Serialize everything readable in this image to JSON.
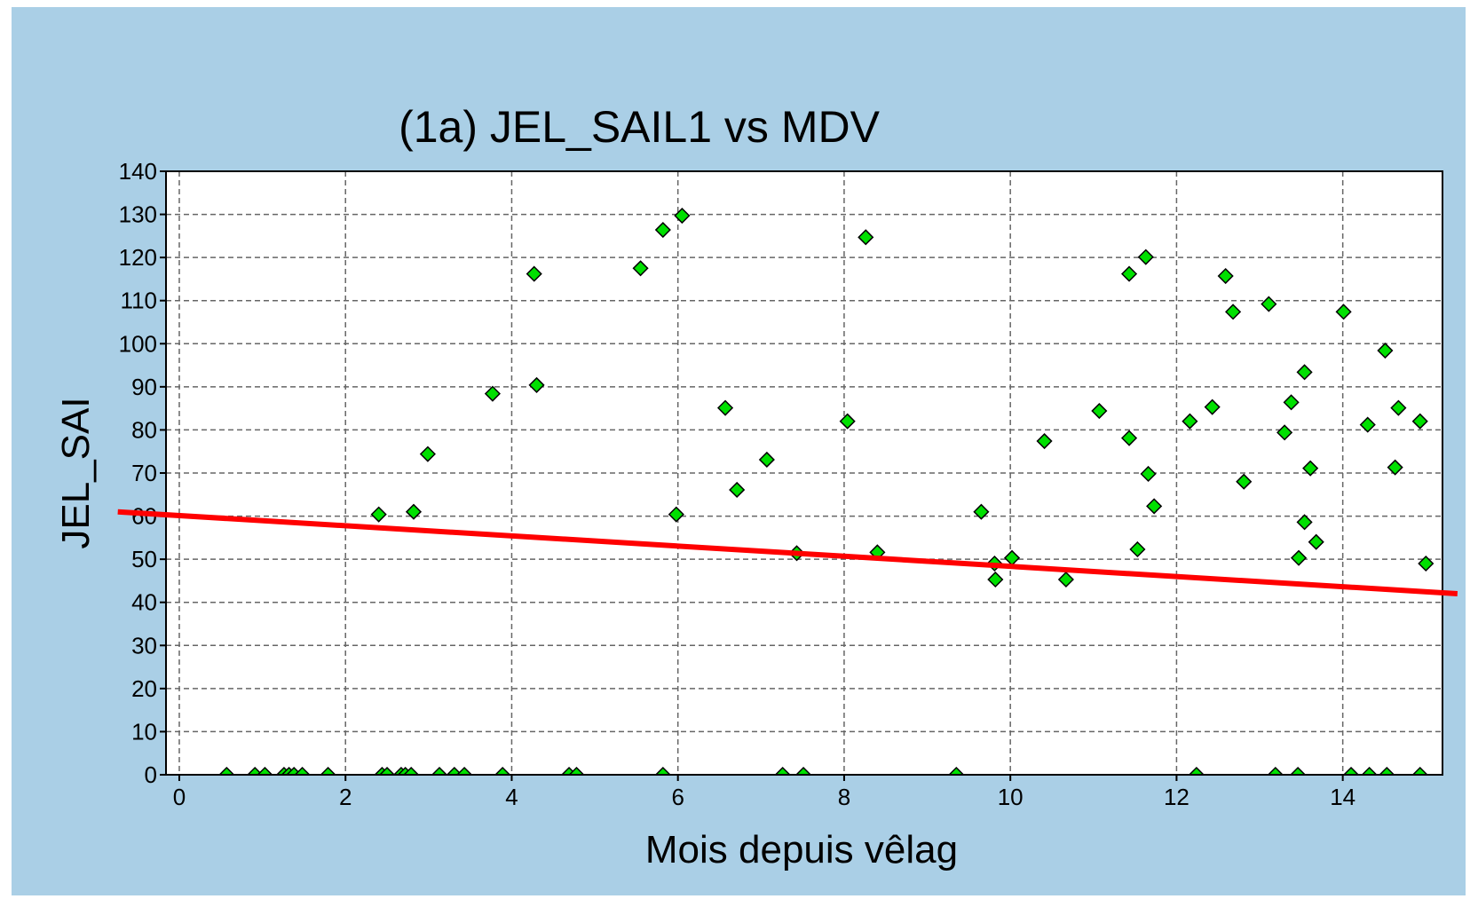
{
  "chart_data": {
    "type": "scatter",
    "title": "(1a) JEL_SAIL1 vs MDV",
    "xlabel": "Mois depuis vêlag",
    "ylabel": "JEL_SAI",
    "x": [
      2.4,
      2.82,
      2.99,
      3.77,
      4.27,
      4.3,
      5.55,
      5.82,
      6.05,
      5.98,
      6.57,
      6.71,
      7.07,
      7.43,
      8.04,
      8.26,
      8.4,
      9.65,
      9.81,
      9.82,
      10.02,
      10.41,
      10.67,
      11.07,
      11.43,
      11.43,
      11.53,
      11.63,
      11.66,
      11.73,
      12.16,
      12.43,
      12.59,
      12.68,
      12.81,
      13.11,
      13.3,
      13.38,
      13.47,
      13.54,
      13.54,
      13.61,
      13.68,
      14.01,
      14.3,
      14.51,
      14.63,
      14.67,
      14.93,
      15.0,
      0.57,
      0.91,
      1.03,
      1.26,
      1.32,
      1.38,
      1.48,
      1.79,
      2.44,
      2.5,
      2.67,
      2.72,
      2.79,
      3.13,
      3.31,
      3.43,
      3.89,
      4.69,
      4.78,
      5.82,
      7.26,
      7.51,
      9.35,
      12.24,
      13.19,
      13.46,
      14.1,
      14.32,
      14.53,
      14.93
    ],
    "values": [
      60.4,
      61,
      74.4,
      88.4,
      116.2,
      90.4,
      117.5,
      126.4,
      129.7,
      60.4,
      85.1,
      66.1,
      73.1,
      51.4,
      82,
      124.7,
      51.6,
      61,
      49,
      45.3,
      50.3,
      77.4,
      45.3,
      84.4,
      116.2,
      78.1,
      52.3,
      120.1,
      69.8,
      62.3,
      82,
      85.3,
      115.7,
      107.4,
      68,
      109.2,
      79.4,
      86.4,
      50.3,
      93.4,
      58.6,
      71.1,
      54,
      107.4,
      81.2,
      98.4,
      71.3,
      85.1,
      82,
      49,
      0,
      0,
      0,
      0,
      0,
      0,
      0,
      0,
      0,
      0,
      0,
      0,
      0,
      0,
      0,
      0,
      0,
      0,
      0,
      0,
      0,
      0,
      0,
      0,
      0,
      0,
      0,
      0,
      0,
      0
    ],
    "color": "#00e000",
    "trend_line": {
      "x": [
        -0.74,
        15.38
      ],
      "values": [
        61,
        42
      ],
      "color": "#ff0000"
    },
    "xlim": [
      -0.16,
      15.2
    ],
    "ylim": [
      0,
      140
    ],
    "xticks": [
      0,
      2,
      4,
      6,
      8,
      10,
      12,
      14
    ],
    "yticks": [
      0,
      10,
      20,
      30,
      40,
      50,
      60,
      70,
      80,
      90,
      100,
      110,
      120,
      130,
      140
    ],
    "grid": true
  }
}
